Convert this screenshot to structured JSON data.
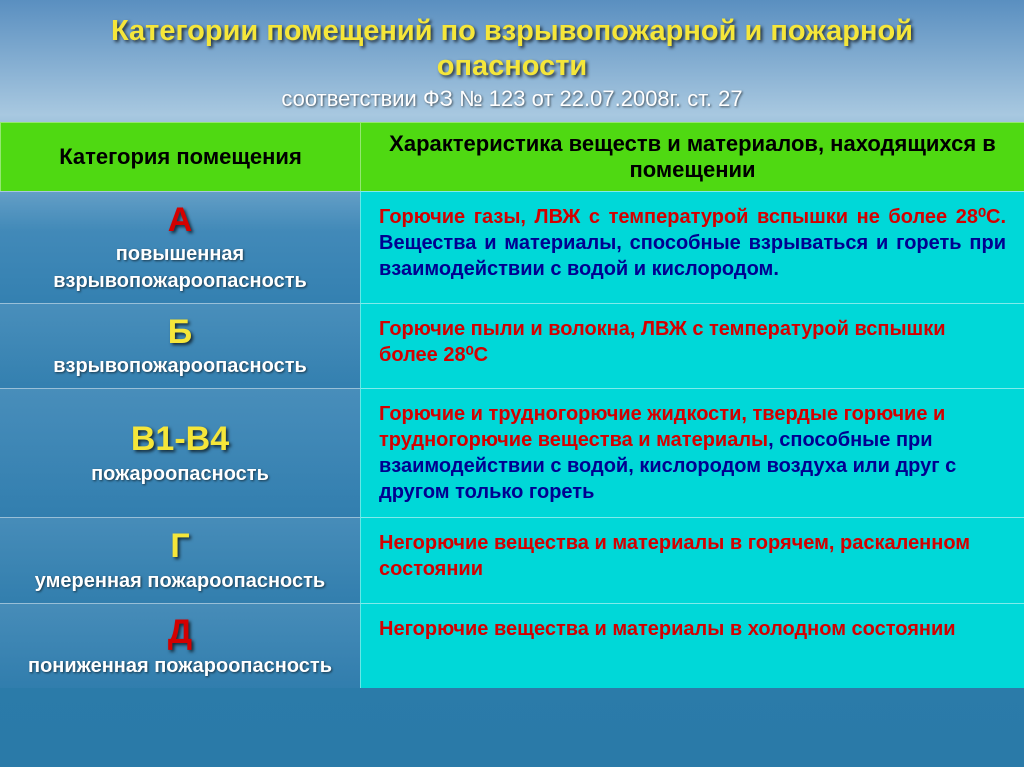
{
  "title": "Категории помещений по взрывопожарной и пожарной опасности",
  "subtitle": "соответствии ФЗ № 123 от 22.07.2008г. ст. 27",
  "colors": {
    "title": "#f5e63a",
    "header_bg": "#4fd912",
    "desc_bg": "#00d8d8",
    "red_text": "#d40000",
    "dark_text": "#000090",
    "letter_A": "#d40000",
    "letter_B": "#f5e63a",
    "letter_V": "#f5e63a",
    "letter_G": "#f5e63a",
    "letter_D": "#d40000"
  },
  "headers": {
    "col1": "Категория помещения",
    "col2": "Характеристика веществ и материалов, находящихся в помещении"
  },
  "rows": [
    {
      "letter": "А",
      "letter_color": "#d40000",
      "cat_desc_1": "повышенная",
      "cat_desc_2": "взрывопожароопасность",
      "desc_red": "Горючие газы, ЛВЖ с температурой вспышки не более 28⁰С.",
      "desc_rest": " Вещества и материалы, способные взрываться и гореть при взаимодействии с водой и кислородом."
    },
    {
      "letter": "Б",
      "letter_color": "#f5e63a",
      "cat_desc_1": "взрывопожароопасность",
      "cat_desc_2": "",
      "desc_red": "Горючие пыли и волокна, ЛВЖ с температурой вспышки более 28⁰С",
      "desc_rest": ""
    },
    {
      "letter": "В1-В4",
      "letter_color": "#f5e63a",
      "cat_desc_1": "пожароопасность",
      "cat_desc_2": "",
      "desc_red": "Горючие и трудногорючие жидкости, твердые горючие и трудногорючие вещества и материалы",
      "desc_rest": ", способные при взаимодействии с водой, кислородом воздуха или друг с другом только гореть"
    },
    {
      "letter": "Г",
      "letter_color": "#f5e63a",
      "cat_desc_1": "умеренная пожароопасность",
      "cat_desc_2": "",
      "desc_red": "Негорючие вещества и материалы в горячем, раскаленном состоянии",
      "desc_rest": ""
    },
    {
      "letter": "Д",
      "letter_color": "#d40000",
      "cat_desc_1": "пониженная пожароопасность",
      "cat_desc_2": "",
      "desc_red": "Негорючие вещества и материалы в холодном состоянии",
      "desc_rest": ""
    }
  ]
}
